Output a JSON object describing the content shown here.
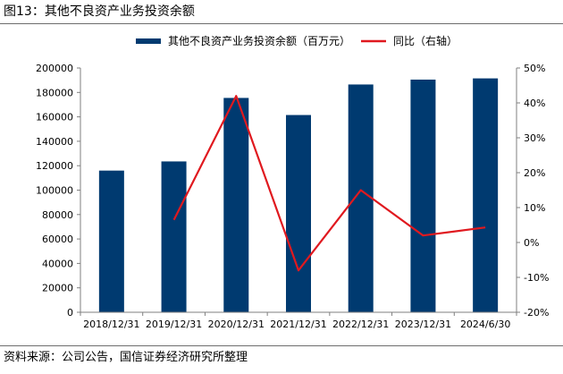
{
  "figure_title": "图13：其他不良资产业务投资余额",
  "source": "资料来源：公司公告，国信证券经济研究所整理",
  "colors": {
    "bar": "#003a70",
    "line": "#e0191f",
    "axis": "#7f7f7f"
  },
  "chart_data": {
    "type": "bar",
    "categories": [
      "2018/12/31",
      "2019/12/31",
      "2020/12/31",
      "2021/12/31",
      "2022/12/31",
      "2023/12/31",
      "2024/6/30"
    ],
    "series": [
      {
        "name": "其他不良资产业务投资余额（百万元）",
        "type": "bar",
        "axis": "left",
        "values": [
          116000,
          123500,
          175500,
          161500,
          186500,
          190500,
          191500
        ]
      },
      {
        "name": "同比（右轴）",
        "type": "line",
        "axis": "right",
        "values": [
          null,
          6.5,
          42.0,
          -8.0,
          15.0,
          2.0,
          4.3
        ]
      }
    ],
    "ylim": [
      0,
      200000
    ],
    "yticks": [
      0,
      20000,
      40000,
      60000,
      80000,
      100000,
      120000,
      140000,
      160000,
      180000,
      200000
    ],
    "y2lim": [
      -20,
      50
    ],
    "y2ticks": [
      "-20%",
      "-10%",
      "0%",
      "10%",
      "20%",
      "30%",
      "40%",
      "50%"
    ],
    "legend_position": "top",
    "grid": false
  }
}
